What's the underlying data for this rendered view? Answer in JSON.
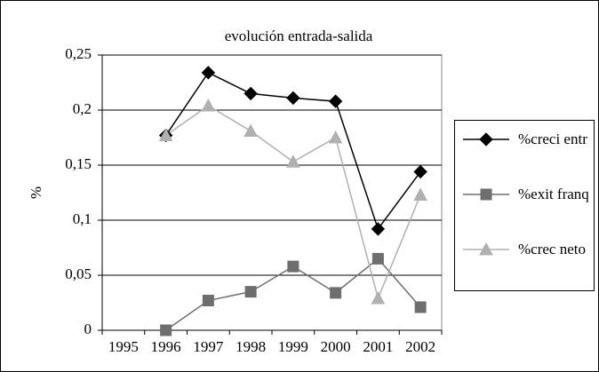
{
  "chart_data": {
    "type": "line",
    "title": "evolución entrada-salida",
    "y_label": "%",
    "categories": [
      "1995",
      "1996",
      "1997",
      "1998",
      "1999",
      "2000",
      "2001",
      "2002"
    ],
    "series": [
      {
        "name": "%creci entr",
        "color": "#000000",
        "marker": "diamond",
        "values": [
          null,
          0.177,
          0.234,
          0.215,
          0.211,
          0.208,
          0.092,
          0.144
        ]
      },
      {
        "name": "%exit franq",
        "color": "#6e6e6e",
        "marker": "square",
        "values": [
          null,
          0,
          0.027,
          0.035,
          0.058,
          0.034,
          0.065,
          0.021
        ]
      },
      {
        "name": "%crec neto",
        "color": "#b0b0b0",
        "marker": "triangle",
        "values": [
          null,
          0.177,
          0.204,
          0.181,
          0.153,
          0.175,
          0.029,
          0.123
        ]
      }
    ],
    "ylim": [
      0,
      0.25
    ],
    "yticks": [
      {
        "value": 0,
        "label": "0"
      },
      {
        "value": 0.05,
        "label": "0,05"
      },
      {
        "value": 0.1,
        "label": "0,1"
      },
      {
        "value": 0.15,
        "label": "0,15"
      },
      {
        "value": 0.2,
        "label": "0,2"
      },
      {
        "value": 0.25,
        "label": "0,25"
      }
    ],
    "grid": true,
    "legend": "right"
  }
}
